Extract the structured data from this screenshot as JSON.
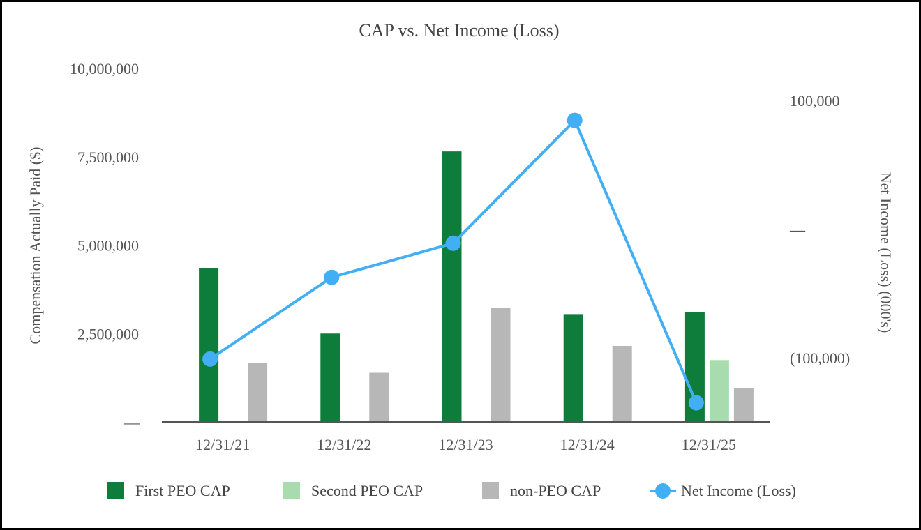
{
  "chart_data": {
    "type": "bar",
    "title": "CAP vs. Net Income (Loss)",
    "categories": [
      "12/31/21",
      "12/31/22",
      "12/31/23",
      "12/31/24",
      "12/31/25"
    ],
    "ylabel_left": "Compensation Actually Paid ($)",
    "ylabel_right": "Net Income (Loss) (000's)",
    "ylim_left": [
      0,
      10000000
    ],
    "ylim_right": [
      -150000,
      125000
    ],
    "left_ticks": [
      {
        "value": 0,
        "label": "—"
      },
      {
        "value": 2500000,
        "label": "2,500,000"
      },
      {
        "value": 5000000,
        "label": "5,000,000"
      },
      {
        "value": 7500000,
        "label": "7,500,000"
      },
      {
        "value": 10000000,
        "label": "10,000,000"
      }
    ],
    "right_ticks": [
      {
        "value": -100000,
        "label": "(100,000)"
      },
      {
        "value": 0,
        "label": "—"
      },
      {
        "value": 100000,
        "label": "100,000"
      }
    ],
    "series": [
      {
        "name": "First PEO CAP",
        "kind": "bar",
        "color": "#0e7c3a",
        "values": [
          4350000,
          2500000,
          7650000,
          3050000,
          3100000
        ]
      },
      {
        "name": "Second PEO CAP",
        "kind": "bar",
        "color": "#a8dcae",
        "values": [
          null,
          null,
          null,
          null,
          1750000
        ]
      },
      {
        "name": "non-PEO CAP",
        "kind": "bar",
        "color": "#b7b7b7",
        "values": [
          1670000,
          1390000,
          3220000,
          2150000,
          960000
        ]
      },
      {
        "name": "Net Income (Loss)",
        "kind": "line",
        "axis": "right",
        "color": "#42aff5",
        "values": [
          -101000,
          -37500,
          -11000,
          84500,
          -135000
        ]
      }
    ],
    "legend_position": "bottom",
    "grid": false
  }
}
